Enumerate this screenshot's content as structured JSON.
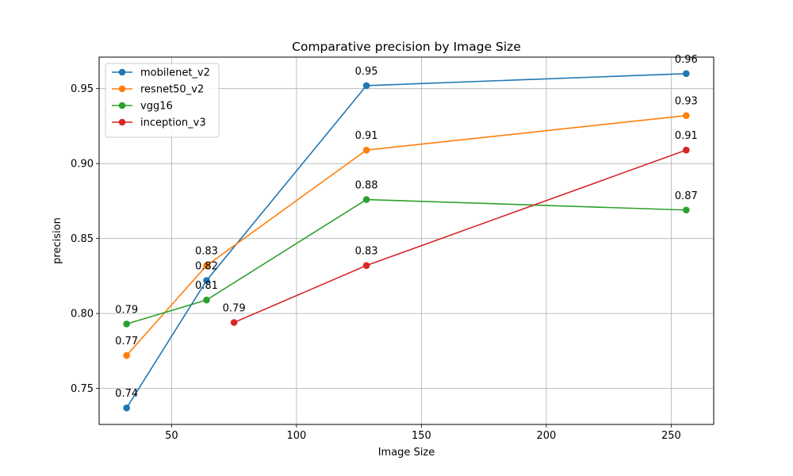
{
  "chart_data": {
    "type": "line",
    "title": "Comparative precision by Image Size",
    "xlabel": "Image Size",
    "ylabel": "precision",
    "xlim": [
      21,
      267
    ],
    "ylim": [
      0.726,
      0.971
    ],
    "xticks": [
      50,
      100,
      150,
      200,
      250
    ],
    "xtick_labels": [
      "50",
      "100",
      "150",
      "200",
      "250"
    ],
    "yticks": [
      0.75,
      0.8,
      0.85,
      0.9,
      0.95
    ],
    "ytick_labels": [
      "0.75",
      "0.80",
      "0.85",
      "0.90",
      "0.95"
    ],
    "grid": true,
    "legend_position": "top-left",
    "series": [
      {
        "name": "mobilenet_v2",
        "color": "#1f77b4",
        "x": [
          32,
          64,
          128,
          256
        ],
        "y": [
          0.737,
          0.822,
          0.952,
          0.96
        ],
        "labels": [
          "0.74",
          "0.82",
          "0.95",
          "0.96"
        ]
      },
      {
        "name": "resnet50_v2",
        "color": "#ff7f0e",
        "x": [
          32,
          64,
          128,
          256
        ],
        "y": [
          0.772,
          0.832,
          0.909,
          0.932
        ],
        "labels": [
          "0.77",
          "0.83",
          "0.91",
          "0.93"
        ]
      },
      {
        "name": "vgg16",
        "color": "#2ca02c",
        "x": [
          32,
          64,
          128,
          256
        ],
        "y": [
          0.793,
          0.809,
          0.876,
          0.869
        ],
        "labels": [
          "0.79",
          "0.81",
          "0.88",
          "0.87"
        ]
      },
      {
        "name": "inception_v3",
        "color": "#d62728",
        "x": [
          75,
          128,
          256
        ],
        "y": [
          0.794,
          0.832,
          0.909
        ],
        "labels": [
          "0.79",
          "0.83",
          "0.91"
        ]
      }
    ]
  }
}
